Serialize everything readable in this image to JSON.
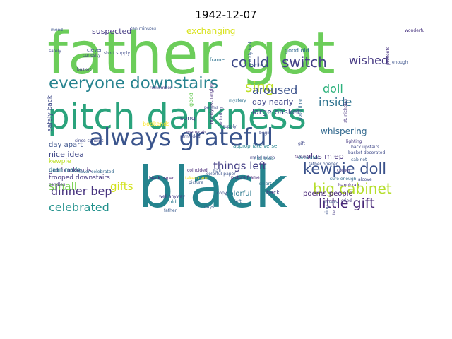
{
  "title": "1942-12-07",
  "words": [
    {
      "text": "father got",
      "color": "#6ccd5a",
      "size": 82,
      "rot": 0
    },
    {
      "text": "pitch darkness",
      "color": "#2aa37c",
      "size": 50,
      "rot": 0
    },
    {
      "text": "black",
      "color": "#25848e",
      "size": 80,
      "rot": 0
    },
    {
      "text": "always grateful",
      "color": "#3a548c",
      "size": 34,
      "rot": 0
    },
    {
      "text": "everyone downstairs",
      "color": "#26838f",
      "size": 23,
      "rot": 0
    },
    {
      "text": "could",
      "color": "#3e4a89",
      "size": 20,
      "rot": 0
    },
    {
      "text": "switch",
      "color": "#424086",
      "size": 20,
      "rot": 0
    },
    {
      "text": "wished",
      "color": "#453882",
      "size": 16,
      "rot": 0
    },
    {
      "text": "sing",
      "color": "#bddf26",
      "size": 20,
      "rot": 0
    },
    {
      "text": "aroused",
      "color": "#3b528b",
      "size": 16,
      "rot": 0
    },
    {
      "text": "doll",
      "color": "#2db27d",
      "size": 16,
      "rot": 0
    },
    {
      "text": "inside",
      "color": "#2c728e",
      "size": 16,
      "rot": 0
    },
    {
      "text": "kewpie doll",
      "color": "#3b528b",
      "size": 21,
      "rot": 0
    },
    {
      "text": "big cabinet",
      "color": "#b5de2b",
      "size": 20,
      "rot": 0
    },
    {
      "text": "little gift",
      "color": "#482878",
      "size": 19,
      "rot": 0
    },
    {
      "text": "dinner bep",
      "color": "#46327e",
      "size": 16,
      "rot": 0
    },
    {
      "text": "small",
      "color": "#7ad151",
      "size": 15,
      "rot": 0
    },
    {
      "text": "gifts",
      "color": "#d2e21b",
      "size": 15,
      "rot": 0
    },
    {
      "text": "celebrated",
      "color": "#21918c",
      "size": 16,
      "rot": 0
    },
    {
      "text": "things left",
      "color": "#433e85",
      "size": 15,
      "rot": 0
    },
    {
      "text": "exchanging",
      "color": "#d8e219",
      "size": 12,
      "rot": 0
    },
    {
      "text": "suspected",
      "color": "#443983",
      "size": 11,
      "rot": 0
    },
    {
      "text": "whispering",
      "color": "#31688e",
      "size": 12,
      "rot": 0
    },
    {
      "text": "large basket",
      "color": "#3e4c8a",
      "size": 11,
      "rot": 0
    },
    {
      "text": "day nearly",
      "color": "#404688",
      "size": 11,
      "rot": 0
    },
    {
      "text": "plus miep",
      "color": "#46327e",
      "size": 11,
      "rot": 0
    },
    {
      "text": "poems people",
      "color": "#482576",
      "size": 10,
      "rot": 0
    },
    {
      "text": "colorful",
      "color": "#2a788e",
      "size": 10,
      "rot": 0
    },
    {
      "text": "nice idea",
      "color": "#3f4788",
      "size": 11,
      "rot": 0
    },
    {
      "text": "day apart",
      "color": "#3b528b",
      "size": 10,
      "rot": 0
    },
    {
      "text": "kewpie",
      "color": "#bddf26",
      "size": 9,
      "rot": 0
    },
    {
      "text": "got bookends",
      "color": "#472c7a",
      "size": 9,
      "rot": 0
    },
    {
      "text": "trooped downstairs",
      "color": "#453882",
      "size": 9,
      "rot": 0
    },
    {
      "text": "song",
      "color": "#424086",
      "size": 9,
      "rot": 0
    },
    {
      "text": "bookends",
      "color": "#fde725",
      "size": 8,
      "rot": 0
    },
    {
      "text": "good old",
      "color": "#31688e",
      "size": 8,
      "rot": 0
    },
    {
      "text": "frame",
      "color": "#2c728e",
      "size": 7,
      "rot": 0
    },
    {
      "text": "clever",
      "color": "#3b528b",
      "size": 7,
      "rot": 0
    },
    {
      "text": "safely back",
      "color": "#3e4a89",
      "size": 9,
      "rot": 270
    },
    {
      "text": "appropriate verse",
      "color": "#26828e",
      "size": 7,
      "rot": 0
    },
    {
      "text": "back",
      "color": "#433e85",
      "size": 8,
      "rot": 0
    },
    {
      "text": "daan made",
      "color": "#2a788e",
      "size": 8,
      "rot": 0
    },
    {
      "text": "since candles",
      "color": "#3f4788",
      "size": 6,
      "rot": 0
    },
    {
      "text": "coincided",
      "color": "#482878",
      "size": 6,
      "rot": 0
    },
    {
      "text": "picture",
      "color": "#38598c",
      "size": 6,
      "rot": 0
    },
    {
      "text": "candles",
      "color": "#46327e",
      "size": 6,
      "rot": 0
    },
    {
      "text": "hall",
      "color": "#3b528b",
      "size": 6,
      "rot": 0
    },
    {
      "text": "make much",
      "color": "#424086",
      "size": 6,
      "rot": 0
    },
    {
      "text": "nicholas",
      "color": "#2a788e",
      "size": 7,
      "rot": 0
    },
    {
      "text": "familiar",
      "color": "#482475",
      "size": 6,
      "rot": 0
    },
    {
      "text": "basket decorated",
      "color": "#3e4a89",
      "size": 6,
      "rot": 0
    },
    {
      "text": "back upstairs",
      "color": "#3f4788",
      "size": 6,
      "rot": 0
    },
    {
      "text": "cabinet",
      "color": "#38598c",
      "size": 6,
      "rot": 0
    },
    {
      "text": "father opened",
      "color": "#3b528b",
      "size": 6,
      "rot": 0
    },
    {
      "text": "decorated",
      "color": "#2c728e",
      "size": 6,
      "rot": 0
    },
    {
      "text": "alcove",
      "color": "#3e4989",
      "size": 6,
      "rot": 0
    },
    {
      "text": "corner",
      "color": "#453781",
      "size": 6,
      "rot": 0
    },
    {
      "text": "sure enough",
      "color": "#31688e",
      "size": 6,
      "rot": 0
    },
    {
      "text": "hanukkah",
      "color": "#482878",
      "size": 6,
      "rot": 0
    },
    {
      "text": "busy whispering",
      "color": "#3b528b",
      "size": 7,
      "rot": 270
    },
    {
      "text": "people write",
      "color": "#443983",
      "size": 6,
      "rot": 270
    },
    {
      "text": "ten minutes",
      "color": "#3b528b",
      "size": 6,
      "rot": 0
    },
    {
      "text": "short supply",
      "color": "#3e4a89",
      "size": 6,
      "rot": 0
    },
    {
      "text": "curiosity",
      "color": "#433e85",
      "size": 6,
      "rot": 0
    },
    {
      "text": "merely exchanging",
      "color": "#472d7b",
      "size": 6,
      "rot": 270
    },
    {
      "text": "quickly took",
      "color": "#38598c",
      "size": 6,
      "rot": 270
    },
    {
      "text": "st. nicholas",
      "color": "#46327e",
      "size": 6,
      "rot": 270
    },
    {
      "text": "never celebrated",
      "color": "#31688e",
      "size": 6,
      "rot": 0
    },
    {
      "text": "black paper",
      "color": "#482576",
      "size": 6,
      "rot": 0
    },
    {
      "text": "mood",
      "color": "#3b528b",
      "size": 6,
      "rot": 0
    },
    {
      "text": "safely",
      "color": "#3e4a89",
      "size": 6,
      "rot": 0
    },
    {
      "text": "basket",
      "color": "#453882",
      "size": 6,
      "rot": 0
    },
    {
      "text": "mystery",
      "color": "#2c728e",
      "size": 6,
      "rot": 0
    },
    {
      "text": "poems",
      "color": "#3f4788",
      "size": 6,
      "rot": 0
    },
    {
      "text": "days",
      "color": "#38598c",
      "size": 6,
      "rot": 0
    },
    {
      "text": "including",
      "color": "#433e85",
      "size": 6,
      "rot": 270
    },
    {
      "text": "supply",
      "color": "#3b528b",
      "size": 6,
      "rot": 0
    },
    {
      "text": "menorah",
      "color": "#472d7b",
      "size": 6,
      "rot": 0
    },
    {
      "text": "begin",
      "color": "#3e4a89",
      "size": 6,
      "rot": 0
    },
    {
      "text": "good time",
      "color": "#31688e",
      "size": 6,
      "rot": 270
    },
    {
      "text": "lighting",
      "color": "#453882",
      "size": 6,
      "rot": 0
    },
    {
      "text": "presents",
      "color": "#46327e",
      "size": 6,
      "rot": 270
    },
    {
      "text": "write",
      "color": "#3b528b",
      "size": 6,
      "rot": 0
    },
    {
      "text": "old",
      "color": "#2a788e",
      "size": 7,
      "rot": 0
    },
    {
      "text": "copy",
      "color": "#3e4989",
      "size": 6,
      "rot": 0
    },
    {
      "text": "taken care",
      "color": "#fde725",
      "size": 6,
      "rot": 0
    },
    {
      "text": "colorful paper",
      "color": "#3b528b",
      "size": 6,
      "rot": 0
    },
    {
      "text": "picture frame",
      "color": "#482878",
      "size": 6,
      "rot": 0
    },
    {
      "text": "well anyway",
      "color": "#433e85",
      "size": 6,
      "rot": 0
    },
    {
      "text": "shivers",
      "color": "#3b528b",
      "size": 6,
      "rot": 0
    },
    {
      "text": "smart",
      "color": "#2c728e",
      "size": 6,
      "rot": 0
    },
    {
      "text": "gift",
      "color": "#3f4788",
      "size": 6,
      "rot": 0
    },
    {
      "text": "cried",
      "color": "#453882",
      "size": 6,
      "rot": 0
    },
    {
      "text": "father",
      "color": "#38598c",
      "size": 6,
      "rot": 0
    },
    {
      "text": "enough",
      "color": "#3b528b",
      "size": 6,
      "rot": 0
    },
    {
      "text": "wonderful",
      "color": "#46327e",
      "size": 6,
      "rot": 0
    },
    {
      "text": "reminded",
      "color": "#3e4a89",
      "size": 6,
      "rot": 0
    },
    {
      "text": "left",
      "color": "#31688e",
      "size": 6,
      "rot": 0
    },
    {
      "text": "remember",
      "color": "#433e85",
      "size": 6,
      "rot": 0
    },
    {
      "text": "good",
      "color": "#6ccd5a",
      "size": 8,
      "rot": 270
    }
  ]
}
